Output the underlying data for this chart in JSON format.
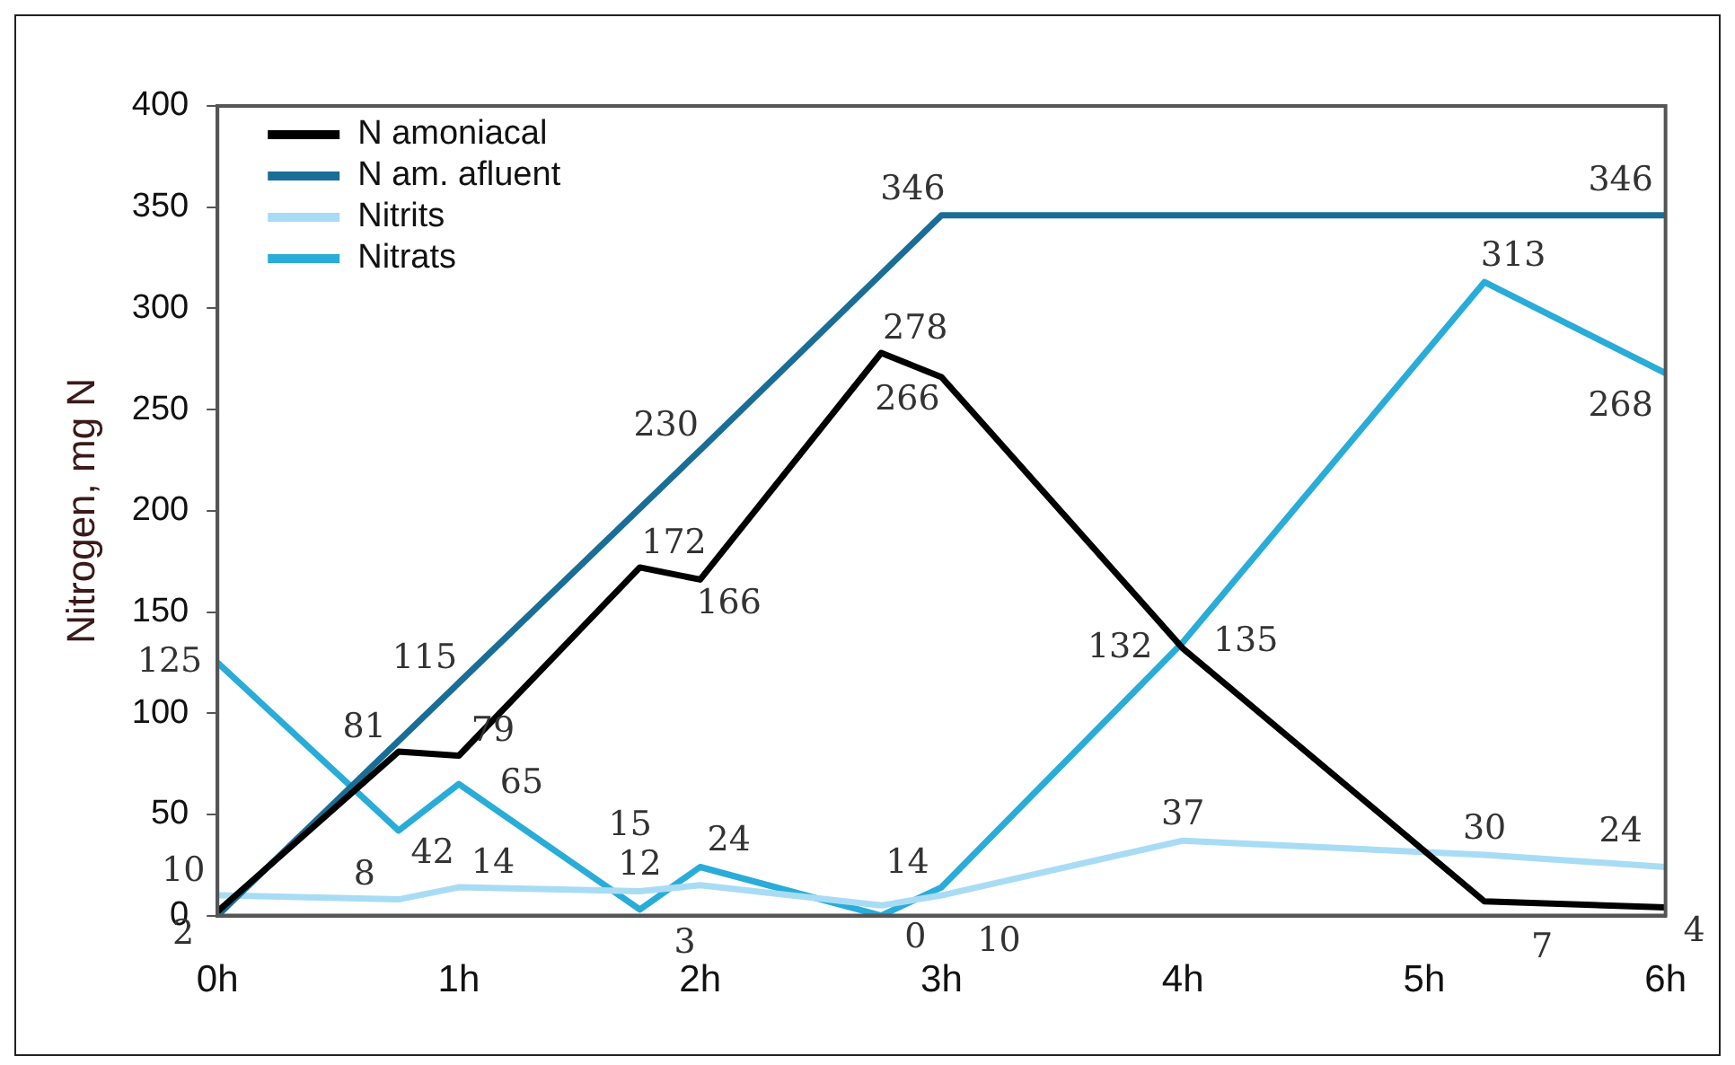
{
  "chart_data": {
    "type": "line",
    "ylabel": "Nitrogen, mg N",
    "xlim": [
      0,
      6
    ],
    "xticks": [
      {
        "value": 0,
        "label": "0h"
      },
      {
        "value": 1,
        "label": "1h"
      },
      {
        "value": 2,
        "label": "2h"
      },
      {
        "value": 3,
        "label": "3h"
      },
      {
        "value": 4,
        "label": "4h"
      },
      {
        "value": 5,
        "label": "5h"
      },
      {
        "value": 6,
        "label": "6h"
      }
    ],
    "ylim": [
      0,
      400
    ],
    "yticks": [
      0,
      50,
      100,
      150,
      200,
      250,
      300,
      350,
      400
    ],
    "grid": false,
    "legend": "top left",
    "marker": "none",
    "line_style": "solid",
    "series": [
      {
        "name": "N amoniacal",
        "color": "#000000",
        "x": [
          0,
          0.75,
          1,
          1.75,
          2,
          2.75,
          3,
          4,
          5.25,
          6
        ],
        "values": [
          2,
          81,
          79,
          172,
          166,
          278,
          266,
          132,
          7,
          4
        ],
        "value_labels": [
          "2",
          "81",
          "79",
          "172",
          "166",
          "278",
          "266",
          "132",
          "7",
          "4"
        ]
      },
      {
        "name": "N am. afluent",
        "color": "#1a6e96",
        "x": [
          0,
          1,
          2,
          3,
          6
        ],
        "values": [
          0,
          115,
          230,
          346,
          346
        ],
        "value_labels": [
          null,
          "115",
          "230",
          "346",
          "346"
        ]
      },
      {
        "name": "Nitrits",
        "color": "#a8dcf5",
        "x": [
          0,
          0.75,
          1,
          1.75,
          2,
          2.75,
          3,
          4,
          5.25,
          6
        ],
        "values": [
          10,
          8,
          14,
          12,
          15,
          5,
          10,
          37,
          30,
          24
        ],
        "value_labels": [
          "10",
          "8",
          "14",
          "12",
          "15",
          null,
          "10",
          "37",
          "30",
          "24"
        ]
      },
      {
        "name": "Nitrats",
        "color": "#29acd8",
        "x": [
          0,
          0.75,
          1,
          1.75,
          2,
          2.75,
          3,
          4,
          5.25,
          6
        ],
        "values": [
          125,
          42,
          65,
          3,
          24,
          0,
          14,
          135,
          313,
          268
        ],
        "value_labels": [
          "125",
          "42",
          "65",
          "3",
          "24",
          "0",
          "14",
          "135",
          "313",
          "268"
        ]
      }
    ]
  }
}
